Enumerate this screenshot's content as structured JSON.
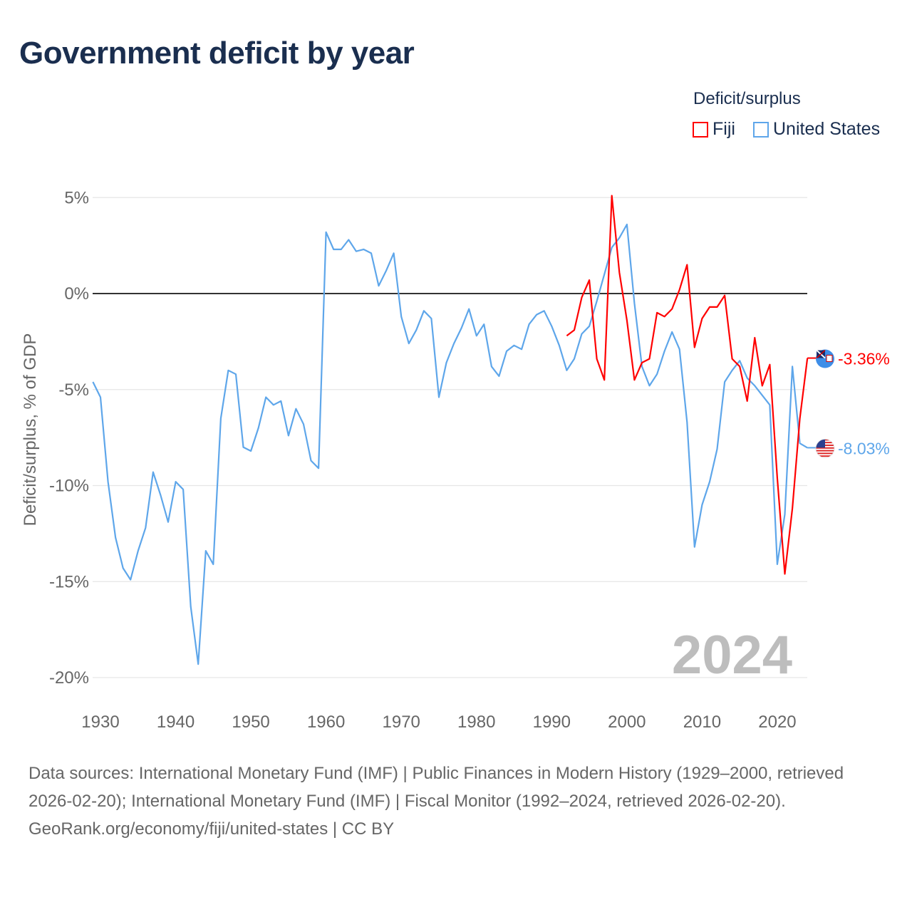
{
  "chart_data": {
    "type": "line",
    "title": "Government deficit by year",
    "xlabel": "",
    "ylabel": "Deficit/surplus, % of GDP",
    "ylim": [
      -20,
      5
    ],
    "xlim": [
      1929,
      2024
    ],
    "yticks": [
      5,
      0,
      -5,
      -10,
      -15,
      -20
    ],
    "ytick_labels": [
      "5%",
      "0%",
      "-5%",
      "-10%",
      "-15%",
      "-20%"
    ],
    "xticks": [
      1930,
      1940,
      1950,
      1960,
      1970,
      1980,
      1990,
      2000,
      2010,
      2020
    ],
    "xtick_labels": [
      "1930",
      "1940",
      "1950",
      "1960",
      "1970",
      "1980",
      "1990",
      "2000",
      "2010",
      "2020"
    ],
    "grid": true,
    "legend_title": "Deficit/surplus",
    "legend_placement": "top-right",
    "watermark_year": "2024",
    "series": [
      {
        "name": "Fiji",
        "color": "#ff0000",
        "start_year": 1992,
        "end_label": "-3.36%",
        "values": [
          -2.2,
          -1.9,
          -0.2,
          0.7,
          -3.4,
          -4.5,
          5.1,
          1.1,
          -1.4,
          -4.5,
          -3.6,
          -3.4,
          -1.0,
          -1.2,
          -0.8,
          0.2,
          1.5,
          -2.8,
          -1.3,
          -0.7,
          -0.7,
          -0.1,
          -3.4,
          -3.8,
          -5.6,
          -2.3,
          -4.8,
          -3.7,
          -9.6,
          -14.6,
          -11.2,
          -6.5,
          -3.36
        ]
      },
      {
        "name": "United States",
        "color": "#5ea6ea",
        "start_year": 1929,
        "end_label": "-8.03%",
        "values": [
          -4.6,
          -5.4,
          -9.8,
          -12.7,
          -14.3,
          -14.9,
          -13.4,
          -12.2,
          -9.3,
          -10.5,
          -11.9,
          -9.8,
          -10.2,
          -16.3,
          -19.3,
          -13.4,
          -14.1,
          -6.5,
          -4.0,
          -4.2,
          -8.0,
          -8.2,
          -7.0,
          -5.4,
          -5.8,
          -5.6,
          -7.4,
          -6.0,
          -6.8,
          -8.7,
          -9.1,
          3.2,
          2.3,
          2.3,
          2.8,
          2.2,
          2.3,
          2.1,
          0.4,
          1.2,
          2.1,
          -1.2,
          -2.6,
          -1.9,
          -0.9,
          -1.3,
          -5.4,
          -3.6,
          -2.6,
          -1.8,
          -0.8,
          -2.2,
          -1.6,
          -3.8,
          -4.3,
          -3.0,
          -2.7,
          -2.9,
          -1.6,
          -1.1,
          -0.9,
          -1.7,
          -2.7,
          -4.0,
          -3.4,
          -2.1,
          -1.7,
          -0.4,
          1.0,
          2.4,
          2.9,
          3.6,
          -0.5,
          -3.8,
          -4.8,
          -4.2,
          -3.0,
          -2.0,
          -2.9,
          -6.7,
          -13.2,
          -11.0,
          -9.8,
          -8.1,
          -4.6,
          -4.0,
          -3.5,
          -4.4,
          -4.8,
          -5.3,
          -5.8,
          -14.1,
          -11.5,
          -3.8,
          -7.8,
          -8.03
        ]
      }
    ]
  },
  "footer": {
    "sources": "Data sources: International Monetary Fund (IMF) | Public Finances in Modern History (1929–2000, retrieved 2026-02-20); International Monetary Fund (IMF) | Fiscal Monitor (1992–2024, retrieved 2026-02-20).",
    "credit": "GeoRank.org/economy/fiji/united-states | CC BY"
  }
}
